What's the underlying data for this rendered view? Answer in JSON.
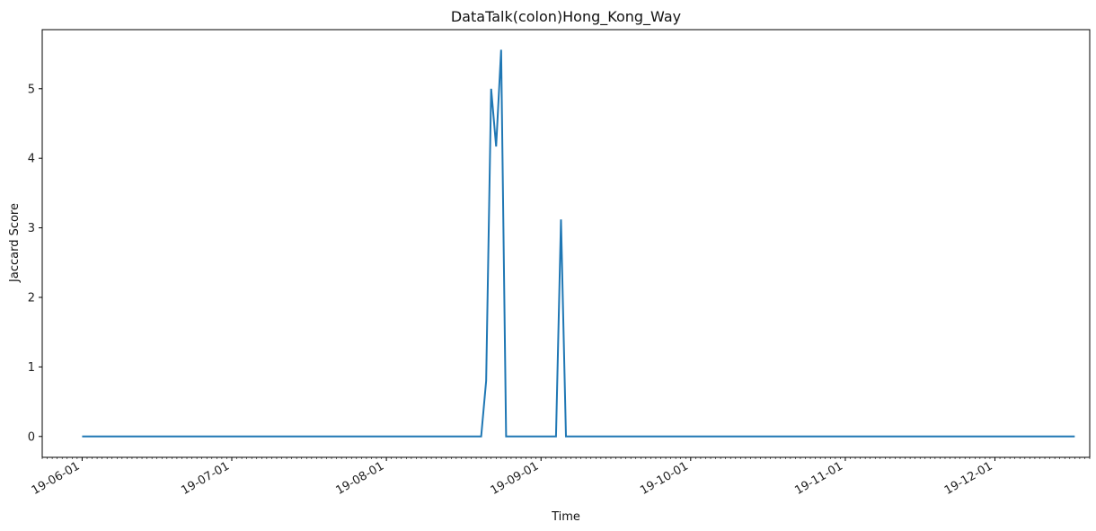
{
  "chart_data": {
    "type": "line",
    "title": "DataTalk(colon)Hong_Kong_Way",
    "xlabel": "Time",
    "ylabel": "Jaccard Score",
    "xlim": [
      "2019-05-24",
      "2019-12-20"
    ],
    "ylim": [
      -0.3,
      5.85
    ],
    "x_ticks": [
      {
        "date": "2019-06-01",
        "label": "19-06-01"
      },
      {
        "date": "2019-07-01",
        "label": "19-07-01"
      },
      {
        "date": "2019-08-01",
        "label": "19-08-01"
      },
      {
        "date": "2019-09-01",
        "label": "19-09-01"
      },
      {
        "date": "2019-10-01",
        "label": "19-10-01"
      },
      {
        "date": "2019-11-01",
        "label": "19-11-01"
      },
      {
        "date": "2019-12-01",
        "label": "19-12-01"
      }
    ],
    "y_ticks": [
      0,
      1,
      2,
      3,
      4,
      5
    ],
    "grid": false,
    "color": "#1f77b4",
    "series": [
      {
        "x": [
          "2019-06-01",
          "2019-08-20",
          "2019-08-21",
          "2019-08-22",
          "2019-08-23",
          "2019-08-24",
          "2019-08-25",
          "2019-08-26",
          "2019-09-04",
          "2019-09-05",
          "2019-09-06",
          "2019-12-17"
        ],
        "y": [
          0,
          0,
          0.8,
          5.0,
          4.17,
          5.56,
          0,
          0,
          0,
          3.12,
          0,
          0
        ]
      }
    ]
  }
}
